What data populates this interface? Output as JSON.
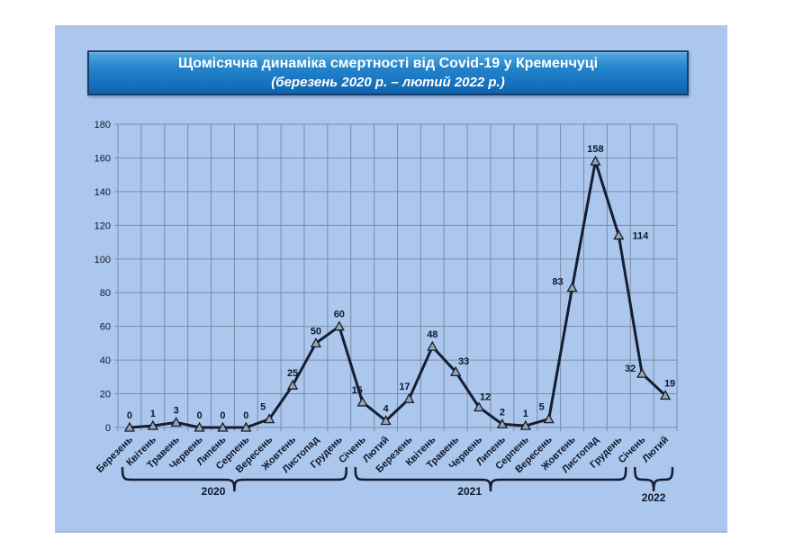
{
  "title": {
    "line1": "Щомісячна динаміка смертності від Covid-19 у Кременчуці",
    "line2": "(березень 2020 р. – лютий 2022 р.)"
  },
  "colors": {
    "page_bg": "#ffffff",
    "panel_bg": "#abc7ee",
    "title_border": "#16406f",
    "title_text": "#ffffff",
    "grid": "#7d8ca2",
    "line": "#161d31",
    "marker_fill": "#9aa6b4",
    "text": "#10172b"
  },
  "chart_data": {
    "type": "line",
    "title": "Щомісячна динаміка смертності від Covid-19 у Кременчуці (березень 2020 р. – лютий 2022 р.)",
    "categories": [
      "Березень",
      "Квітень",
      "Травень",
      "Червень",
      "Липень",
      "Серпень",
      "Вересень",
      "Жовтень",
      "Листопад",
      "Грудень",
      "Січень",
      "Лютий",
      "Березень",
      "Квітень",
      "Травень",
      "Червень",
      "Липень",
      "Серпень",
      "Вересень",
      "Жовтень",
      "Листопад",
      "Грудень",
      "Січень",
      "Лютий"
    ],
    "values": [
      0,
      1,
      3,
      0,
      0,
      0,
      5,
      25,
      50,
      60,
      15,
      4,
      17,
      48,
      33,
      12,
      2,
      1,
      5,
      83,
      158,
      114,
      32,
      19
    ],
    "year_groups": [
      {
        "label": "2020",
        "start": 0,
        "count": 10
      },
      {
        "label": "2021",
        "start": 10,
        "count": 12
      },
      {
        "label": "2022",
        "start": 22,
        "count": 2
      }
    ],
    "ylim": [
      0,
      180
    ],
    "ytick_step": 20,
    "grid": true,
    "legend": false,
    "marker": "triangle",
    "label_offsets": {
      "6": [
        -7,
        0
      ],
      "10": [
        -6,
        0
      ],
      "12": [
        -5,
        0
      ],
      "14": [
        9,
        2
      ],
      "15": [
        7,
        2
      ],
      "18": [
        -8,
        0
      ],
      "19": [
        -16,
        7
      ],
      "21": [
        24,
        14
      ],
      "22": [
        -13,
        8
      ],
      "23": [
        5,
        0
      ]
    }
  }
}
